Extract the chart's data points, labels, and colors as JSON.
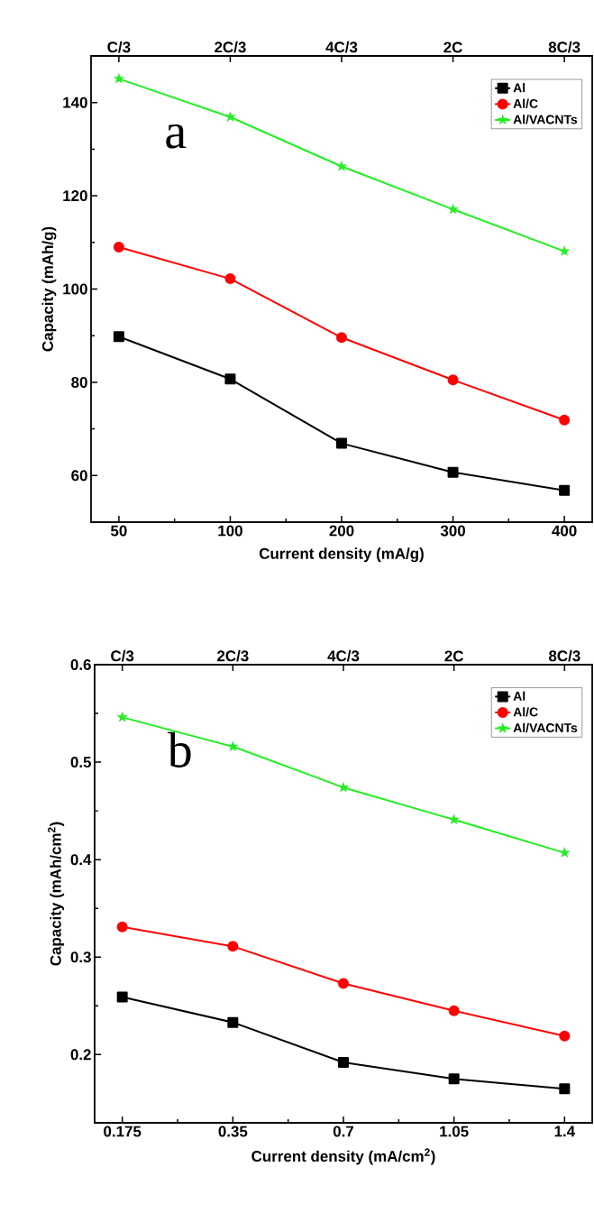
{
  "chart_data": [
    {
      "type": "line",
      "xlabel": "Current density (mA/g)",
      "ylabel": "Capacity (mAh/g)",
      "annotations": [
        "a",
        {
          "text": "C/3",
          "x": "50"
        },
        {
          "text": "2C/3",
          "x": "100"
        },
        {
          "text": "4C/3",
          "x": "200"
        },
        {
          "text": "2C",
          "x": "300"
        },
        {
          "text": "8C/3",
          "x": "400"
        }
      ],
      "categories": [
        "50",
        "100",
        "200",
        "300",
        "400"
      ],
      "ylim": [
        50,
        150
      ],
      "yticks": [
        60,
        80,
        100,
        120,
        140
      ],
      "legend": "top right",
      "grid": false,
      "line_style": "solid",
      "series": [
        {
          "name": "Al",
          "color": "#000000",
          "marker": "square",
          "values": [
            89.8,
            80.7,
            66.9,
            60.7,
            56.8
          ]
        },
        {
          "name": "Al/C",
          "color": "#ff0000",
          "marker": "circle",
          "values": [
            109.0,
            102.2,
            89.6,
            80.5,
            71.9
          ]
        },
        {
          "name": "Al/VACNTs",
          "color": "#22ee22",
          "marker": "star",
          "values": [
            145.1,
            136.9,
            126.3,
            117.1,
            108.1
          ]
        }
      ]
    },
    {
      "type": "line",
      "xlabel": "Current density (mA/cm$^{2}$)",
      "ylabel": "Capacity (mAh/cm$^{2}$)",
      "annotations": [
        "b",
        {
          "text": "C/3",
          "x": "0.175"
        },
        {
          "text": "2C/3",
          "x": "0.35"
        },
        {
          "text": "4C/3",
          "x": "0.7"
        },
        {
          "text": "2C",
          "x": "1.05"
        },
        {
          "text": "8C/3",
          "x": "1.4"
        }
      ],
      "categories": [
        "0.175",
        "0.35",
        "0.7",
        "1.05",
        "1.4"
      ],
      "ylim": [
        0.13,
        0.6
      ],
      "yticks": [
        0.2,
        0.3,
        0.4,
        0.5,
        0.6
      ],
      "legend": "top right",
      "grid": false,
      "line_style": "solid",
      "series": [
        {
          "name": "Al",
          "color": "#000000",
          "marker": "square",
          "values": [
            0.259,
            0.233,
            0.192,
            0.175,
            0.165
          ]
        },
        {
          "name": "Al/C",
          "color": "#ff0000",
          "marker": "circle",
          "values": [
            0.331,
            0.311,
            0.273,
            0.245,
            0.219
          ]
        },
        {
          "name": "Al/VACNTs",
          "color": "#22ee22",
          "marker": "star",
          "values": [
            0.546,
            0.516,
            0.474,
            0.441,
            0.407
          ]
        }
      ]
    }
  ]
}
